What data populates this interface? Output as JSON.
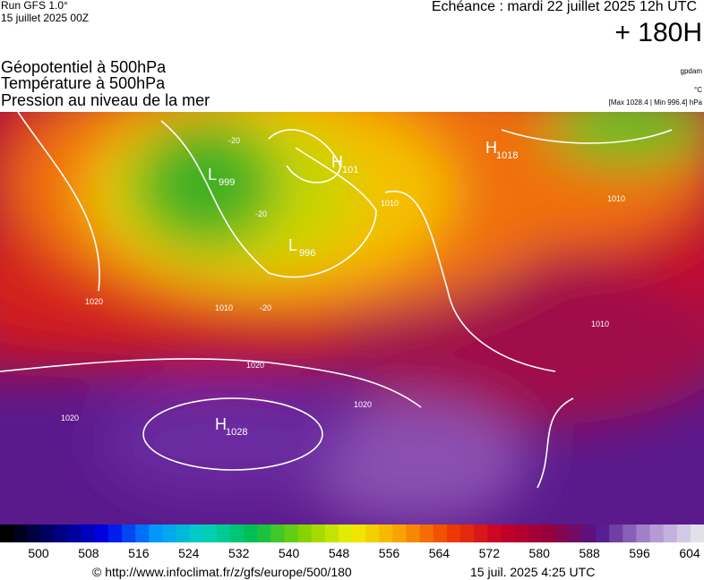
{
  "header": {
    "run": "Run GFS 1.0°",
    "run_date": "15 juillet 2025 00Z",
    "valid": "Echéance : mardi 22 juillet 2025 12h UTC",
    "lead": "+ 180H",
    "titles": [
      "Géopotentiel à 500hPa",
      "Température à 500hPa",
      "Pression au niveau de la mer"
    ],
    "units": [
      "gpdam",
      "°C",
      "[Max 1028.4 | Min 996.4] hPa"
    ]
  },
  "map": {
    "centers": [
      {
        "letter": "L",
        "value": "999"
      },
      {
        "letter": "H",
        "value": "101"
      },
      {
        "letter": "L",
        "value": "996"
      },
      {
        "letter": "H",
        "value": "1018"
      },
      {
        "letter": "H",
        "value": "1028"
      }
    ],
    "isobar_labels": [
      "1010",
      "1020",
      "1020",
      "1020",
      "1020",
      "1010",
      "1010",
      "1010",
      "-20",
      "-20",
      "-20"
    ]
  },
  "colorbar": {
    "ticks": [
      500,
      508,
      516,
      524,
      532,
      540,
      548,
      556,
      564,
      572,
      580,
      588,
      596,
      604
    ]
  },
  "footer": {
    "url": "© http://www.infoclimat.fr/z/gfs/europe/500/180",
    "time": "15 juil. 2025  4:25 UTC"
  }
}
